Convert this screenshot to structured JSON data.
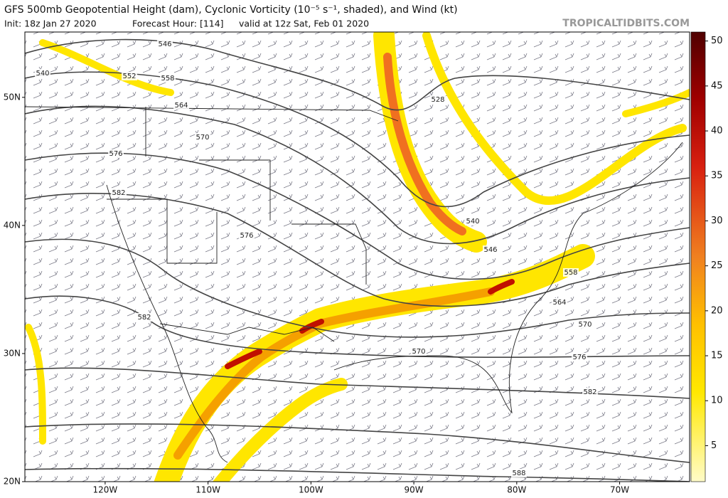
{
  "header": {
    "title": "GFS 500mb Geopotential Height (dam), Cyclonic Vorticity (10⁻⁵ s⁻¹, shaded), and Wind (kt)",
    "init": "Init: 18z Jan 27 2020",
    "forecast": "Forecast Hour: [114]",
    "valid": "valid at 12z Sat, Feb 01 2020",
    "credit": "TROPICALTIDBITS.COM"
  },
  "map": {
    "lat_lim": [
      20,
      55.1
    ],
    "lon_lim": [
      -127.8,
      -63.2
    ],
    "lat_ticks": [
      {
        "value": 50,
        "label": "50N"
      },
      {
        "value": 40,
        "label": "40N"
      },
      {
        "value": 30,
        "label": "30N"
      },
      {
        "value": 20,
        "label": "20N"
      }
    ],
    "lon_ticks": [
      {
        "value": -120,
        "label": "120W"
      },
      {
        "value": -110,
        "label": "110W"
      },
      {
        "value": -100,
        "label": "100W"
      },
      {
        "value": -90,
        "label": "90W"
      },
      {
        "value": -80,
        "label": "80W"
      },
      {
        "value": -70,
        "label": "70W"
      }
    ],
    "contour_labels": [
      546,
      540,
      552,
      558,
      564,
      570,
      576,
      582,
      528,
      540,
      546,
      576,
      582,
      558,
      564,
      570,
      570,
      576,
      582,
      588
    ]
  },
  "colorbar": {
    "lim": [
      1,
      51
    ],
    "ticks": [
      5,
      10,
      15,
      20,
      25,
      30,
      35,
      40,
      45,
      50
    ]
  }
}
